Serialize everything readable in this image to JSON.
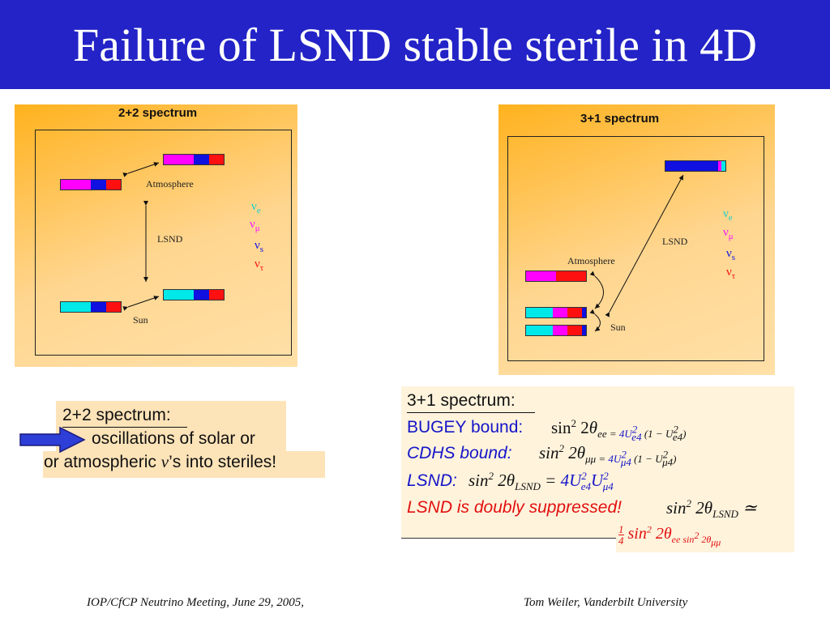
{
  "slide": {
    "title": "Failure of LSND stable sterile in 4D"
  },
  "colors": {
    "nu_e": "#00e0e0",
    "nu_mu": "#ff00ff",
    "nu_s": "#1010e0",
    "nu_tau": "#ff1010",
    "title_bar": "#2323c7"
  },
  "left_figure": {
    "label": "2+2 spectrum",
    "atmosphere": "Atmosphere",
    "lsnd": "LSND",
    "sun": "Sun"
  },
  "right_figure": {
    "label": "3+1 spectrum",
    "atmosphere": "Atmosphere",
    "lsnd": "LSND",
    "sun": "Sun"
  },
  "legend": {
    "nu": "ν",
    "e": "e",
    "mu": "μ",
    "s": "s",
    "tau": "τ"
  },
  "left_note": {
    "heading": "2+2 spectrum:",
    "line1": "oscillations of solar or",
    "line2_a": "or atmospheric ",
    "line2_nu": "ν",
    "line2_b": "’s into steriles!"
  },
  "right_note": {
    "heading": "3+1 spectrum:",
    "bugey_label": "BUGEY bound:",
    "cdhs_label": "CDHS bound:",
    "lsnd_label": "LSND:",
    "suppressed": "LSND is doubly suppressed!"
  },
  "footer": {
    "left": "IOP/CfCP Neutrino Meeting, June 29, 2005,",
    "right": "Tom Weiler, Vanderbilt University"
  }
}
